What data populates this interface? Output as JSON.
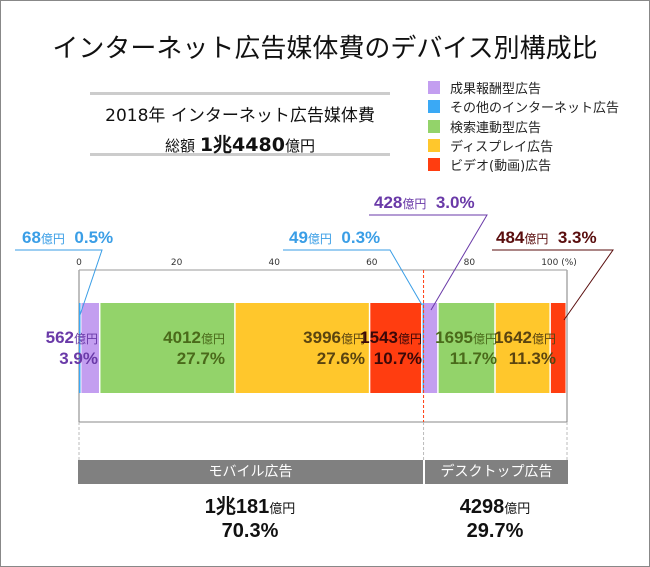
{
  "title": "インターネット広告媒体費のデバイス別構成比",
  "summary": {
    "line1": "2018年 インターネット広告媒体費",
    "prefix": "総額",
    "amount": "1兆4480",
    "unit": "億円"
  },
  "legend": [
    {
      "label": "成果報酬型広告",
      "color": "#c39ef0"
    },
    {
      "label": "その他のインターネット広告",
      "color": "#3aa9f5"
    },
    {
      "label": "検索連動型広告",
      "color": "#93d36a"
    },
    {
      "label": "ディスプレイ広告",
      "color": "#ffc72c"
    },
    {
      "label": "ビデオ(動画)広告",
      "color": "#ff3d10"
    }
  ],
  "chart_data": {
    "type": "bar",
    "orientation": "horizontal-stacked-100",
    "xlim": [
      0,
      100
    ],
    "x_ticks": [
      "0",
      "20",
      "40",
      "60",
      "80",
      "100 (%)"
    ],
    "unit_label": "億円",
    "groups": [
      {
        "name": "モバイル広告",
        "total": "1兆181",
        "total_unit": "億円",
        "share": "70.3%",
        "segments": [
          {
            "series": "その他のインターネット広告",
            "value": 68,
            "percent": 0.5,
            "value_label": "68",
            "percent_label": "0.5%"
          },
          {
            "series": "成果報酬型広告",
            "value": 562,
            "percent": 3.9,
            "value_label": "562",
            "percent_label": "3.9%"
          },
          {
            "series": "検索連動型広告",
            "value": 4012,
            "percent": 27.7,
            "value_label": "4012",
            "percent_label": "27.7%"
          },
          {
            "series": "ディスプレイ広告",
            "value": 3996,
            "percent": 27.6,
            "value_label": "3996",
            "percent_label": "27.6%"
          },
          {
            "series": "ビデオ(動画)広告",
            "value": 1543,
            "percent": 10.7,
            "value_label": "1543",
            "percent_label": "10.7%"
          }
        ]
      },
      {
        "name": "デスクトップ広告",
        "total": "4298",
        "total_unit": "億円",
        "share": "29.7%",
        "segments": [
          {
            "series": "その他のインターネット広告",
            "value": 49,
            "percent": 0.3,
            "value_label": "49",
            "percent_label": "0.3%"
          },
          {
            "series": "成果報酬型広告",
            "value": 428,
            "percent": 3.0,
            "value_label": "428",
            "percent_label": "3.0%"
          },
          {
            "series": "検索連動型広告",
            "value": 1695,
            "percent": 11.7,
            "value_label": "1695",
            "percent_label": "11.7%"
          },
          {
            "series": "ディスプレイ広告",
            "value": 1642,
            "percent": 11.3,
            "value_label": "1642",
            "percent_label": "11.3%"
          },
          {
            "series": "ビデオ(動画)広告",
            "value": 484,
            "percent": 3.3,
            "value_label": "484",
            "percent_label": "3.3%"
          }
        ]
      }
    ]
  }
}
